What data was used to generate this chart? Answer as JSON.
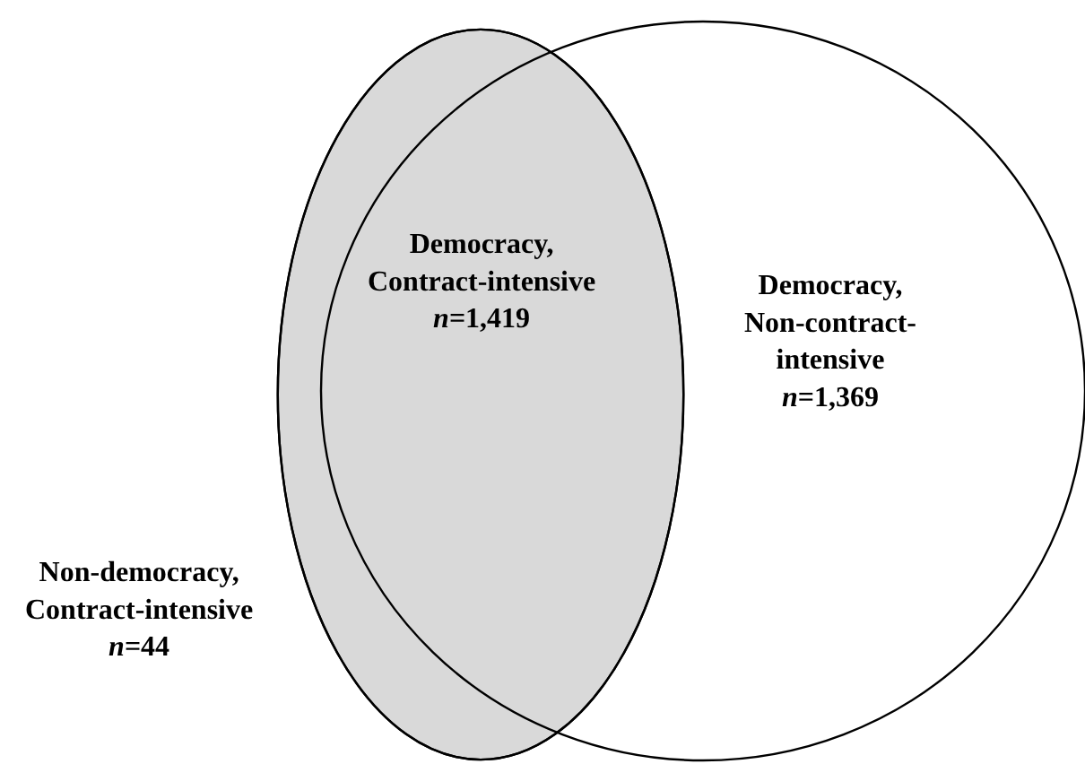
{
  "chart_data": {
    "type": "other",
    "categories": [
      "Democracy,\nContract-intensive",
      "Democracy,\nNon-contract-\nintensive",
      "Non-democracy,\nContract-intensive"
    ],
    "values": [
      1419,
      1369,
      44
    ],
    "value_labels": [
      "n=1,419",
      "n=1,369",
      "n=44"
    ]
  }
}
